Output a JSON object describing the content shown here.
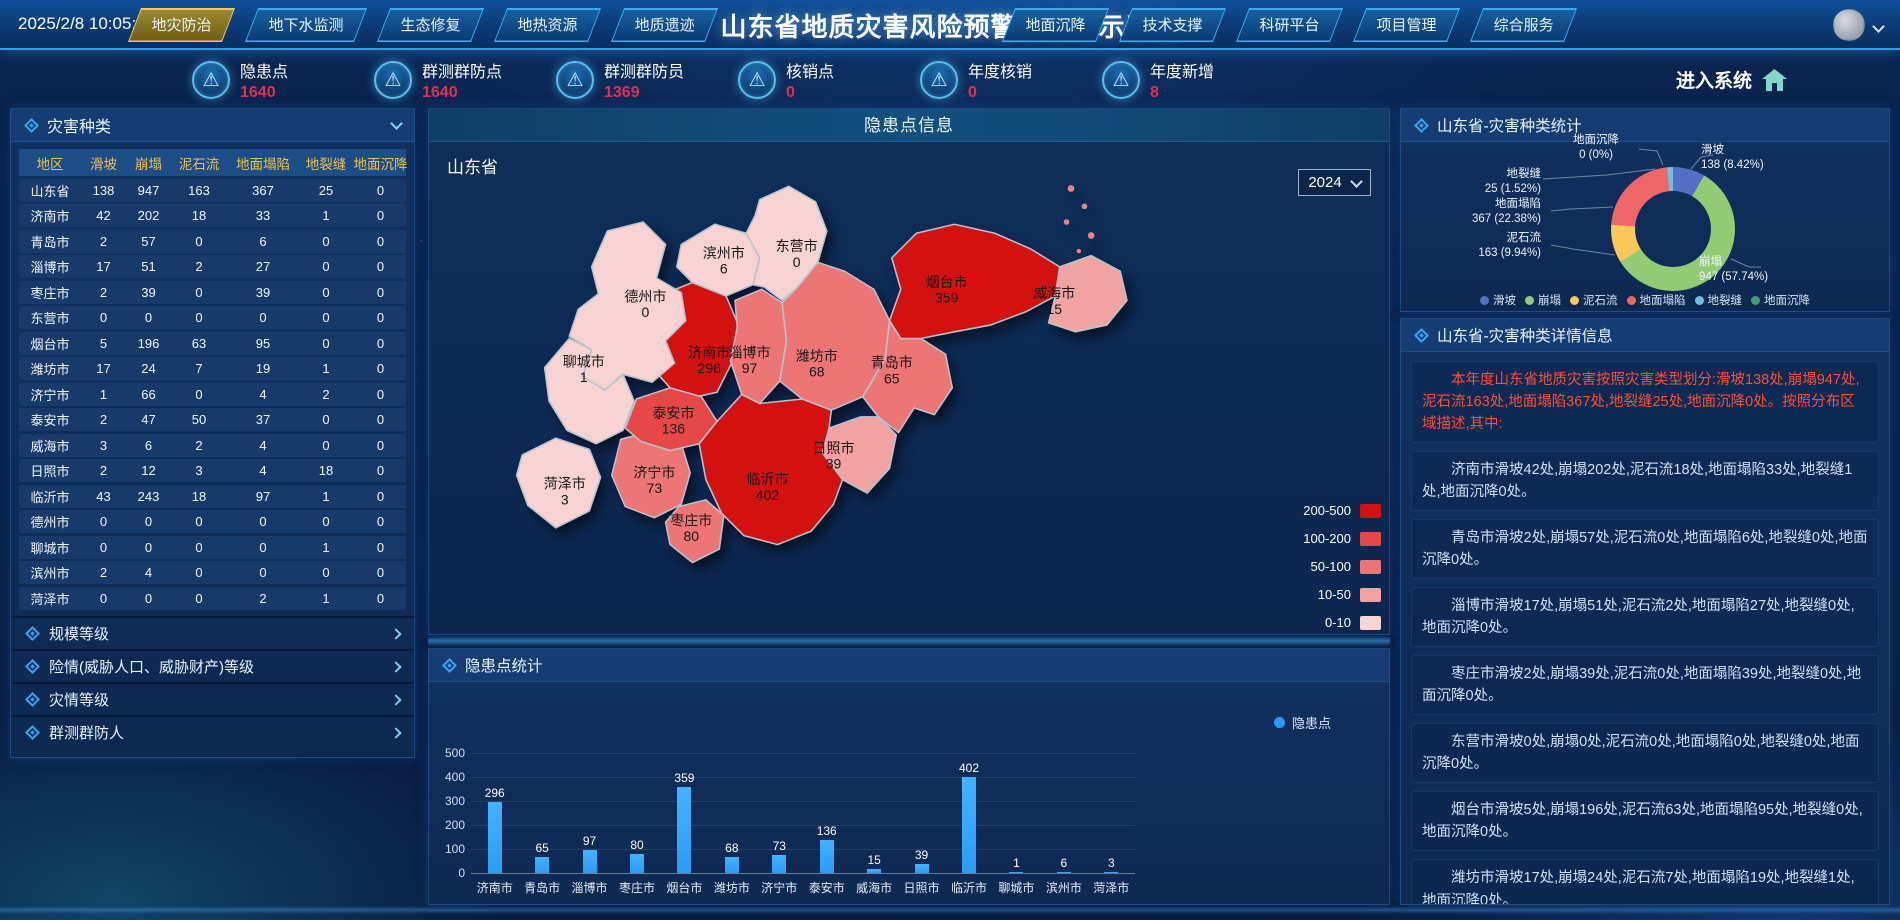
{
  "header": {
    "datetime": "2025/2/8 10:05:54",
    "title": "山东省地质灾害风险预警综合展示系统",
    "tabs_left": [
      {
        "label": "地灾防治",
        "active": true
      },
      {
        "label": "地下水监测",
        "active": false
      },
      {
        "label": "生态修复",
        "active": false
      },
      {
        "label": "地热资源",
        "active": false
      },
      {
        "label": "地质遗迹",
        "active": false
      }
    ],
    "tabs_right": [
      {
        "label": "地面沉降",
        "active": false
      },
      {
        "label": "技术支撑",
        "active": false
      },
      {
        "label": "科研平台",
        "active": false
      },
      {
        "label": "项目管理",
        "active": false
      },
      {
        "label": "综合服务",
        "active": false
      }
    ]
  },
  "stats": {
    "items": [
      {
        "label": "隐患点",
        "value": "1640"
      },
      {
        "label": "群测群防点",
        "value": "1640"
      },
      {
        "label": "群测群防员",
        "value": "1369"
      },
      {
        "label": "核销点",
        "value": "0"
      },
      {
        "label": "年度核销",
        "value": "0"
      },
      {
        "label": "年度新增",
        "value": "8"
      }
    ],
    "enter_label": "进入系统"
  },
  "left_panel": {
    "title": "灾害种类",
    "table": {
      "headers": [
        "地区",
        "滑坡",
        "崩塌",
        "泥石流",
        "地面塌陷",
        "地裂缝",
        "地面沉降"
      ],
      "rows": [
        [
          "山东省",
          138,
          947,
          163,
          367,
          25,
          0
        ],
        [
          "济南市",
          42,
          202,
          18,
          33,
          1,
          0
        ],
        [
          "青岛市",
          2,
          57,
          0,
          6,
          0,
          0
        ],
        [
          "淄博市",
          17,
          51,
          2,
          27,
          0,
          0
        ],
        [
          "枣庄市",
          2,
          39,
          0,
          39,
          0,
          0
        ],
        [
          "东营市",
          0,
          0,
          0,
          0,
          0,
          0
        ],
        [
          "烟台市",
          5,
          196,
          63,
          95,
          0,
          0
        ],
        [
          "潍坊市",
          17,
          24,
          7,
          19,
          1,
          0
        ],
        [
          "济宁市",
          1,
          66,
          0,
          4,
          2,
          0
        ],
        [
          "泰安市",
          2,
          47,
          50,
          37,
          0,
          0
        ],
        [
          "威海市",
          3,
          6,
          2,
          4,
          0,
          0
        ],
        [
          "日照市",
          2,
          12,
          3,
          4,
          18,
          0
        ],
        [
          "临沂市",
          43,
          243,
          18,
          97,
          1,
          0
        ],
        [
          "德州市",
          0,
          0,
          0,
          0,
          0,
          0
        ],
        [
          "聊城市",
          0,
          0,
          0,
          0,
          1,
          0
        ],
        [
          "滨州市",
          2,
          4,
          0,
          0,
          0,
          0
        ],
        [
          "菏泽市",
          0,
          0,
          0,
          2,
          1,
          0
        ]
      ]
    },
    "accordions": [
      "规模等级",
      "险情(威胁人口、威胁财产)等级",
      "灾情等级",
      "群测群防人"
    ]
  },
  "map_panel": {
    "title": "隐患点信息",
    "province_label": "山东省",
    "year": "2024"
  },
  "bar_panel": {
    "title": "隐患点统计",
    "legend_label": "隐患点"
  },
  "right_stats": {
    "title": "山东省-灾害种类统计"
  },
  "right_details": {
    "title": "山东省-灾害种类详情信息",
    "intro": "本年度山东省地质灾害按照灾害类型划分:滑坡138处,崩塌947处,泥石流163处,地面塌陷367处,地裂缝25处,地面沉降0处。按照分布区域描述,其中:",
    "items": [
      "济南市滑坡42处,崩塌202处,泥石流18处,地面塌陷33处,地裂缝1处,地面沉降0处。",
      "青岛市滑坡2处,崩塌57处,泥石流0处,地面塌陷6处,地裂缝0处,地面沉降0处。",
      "淄博市滑坡17处,崩塌51处,泥石流2处,地面塌陷27处,地裂缝0处,地面沉降0处。",
      "枣庄市滑坡2处,崩塌39处,泥石流0处,地面塌陷39处,地裂缝0处,地面沉降0处。",
      "东营市滑坡0处,崩塌0处,泥石流0处,地面塌陷0处,地裂缝0处,地面沉降0处。",
      "烟台市滑坡5处,崩塌196处,泥石流63处,地面塌陷95处,地裂缝0处,地面沉降0处。",
      "潍坊市滑坡17处,崩塌24处,泥石流7处,地面塌陷19处,地裂缝1处,地面沉降0处。"
    ]
  },
  "chart_data": [
    {
      "type": "bar",
      "title": "隐患点统计",
      "legend": [
        "隐患点"
      ],
      "legend_position": "top-right",
      "bar_color": "#2b9cf4",
      "grid": true,
      "ylim": [
        0,
        500
      ],
      "ytick_step": 100,
      "categories": [
        "济南市",
        "青岛市",
        "淄博市",
        "枣庄市",
        "烟台市",
        "潍坊市",
        "济宁市",
        "泰安市",
        "威海市",
        "日照市",
        "临沂市",
        "聊城市",
        "滨州市",
        "菏泽市"
      ],
      "values": [
        296,
        65,
        97,
        80,
        359,
        68,
        73,
        136,
        15,
        39,
        402,
        1,
        6,
        3
      ]
    },
    {
      "type": "pie",
      "title": "山东省-灾害种类统计",
      "donut": true,
      "series": [
        {
          "name": "滑坡",
          "value": 138,
          "pct": "8.42%",
          "color": "#5470c6"
        },
        {
          "name": "崩塌",
          "value": 947,
          "pct": "57.74%",
          "color": "#91cc75"
        },
        {
          "name": "泥石流",
          "value": 163,
          "pct": "9.94%",
          "color": "#fac858"
        },
        {
          "name": "地面塌陷",
          "value": 367,
          "pct": "22.38%",
          "color": "#ee6666"
        },
        {
          "name": "地裂缝",
          "value": 25,
          "pct": "1.52%",
          "color": "#73c0de"
        },
        {
          "name": "地面沉降",
          "value": 0,
          "pct": "0%",
          "color": "#3ba272"
        }
      ],
      "legend_position": "bottom"
    },
    {
      "type": "choropleth",
      "title": "隐患点信息",
      "region": "山东省",
      "year": "2024",
      "legend": [
        {
          "range": "200-500",
          "color": "#d41111"
        },
        {
          "range": "100-200",
          "color": "#e64848"
        },
        {
          "range": "50-100",
          "color": "#ee7575"
        },
        {
          "range": "10-50",
          "color": "#f3a2a2"
        },
        {
          "range": "0-10",
          "color": "#f8d3d3"
        }
      ],
      "cities": [
        {
          "name": "济南市",
          "value": 296
        },
        {
          "name": "青岛市",
          "value": 65
        },
        {
          "name": "淄博市",
          "value": 97
        },
        {
          "name": "枣庄市",
          "value": 80
        },
        {
          "name": "东营市",
          "value": 0
        },
        {
          "name": "烟台市",
          "value": 359
        },
        {
          "name": "潍坊市",
          "value": 68
        },
        {
          "name": "济宁市",
          "value": 73
        },
        {
          "name": "泰安市",
          "value": 136
        },
        {
          "name": "威海市",
          "value": 15
        },
        {
          "name": "日照市",
          "value": 39
        },
        {
          "name": "临沂市",
          "value": 402
        },
        {
          "name": "德州市",
          "value": 0
        },
        {
          "name": "聊城市",
          "value": 1
        },
        {
          "name": "滨州市",
          "value": 6
        },
        {
          "name": "菏泽市",
          "value": 3
        }
      ]
    }
  ]
}
